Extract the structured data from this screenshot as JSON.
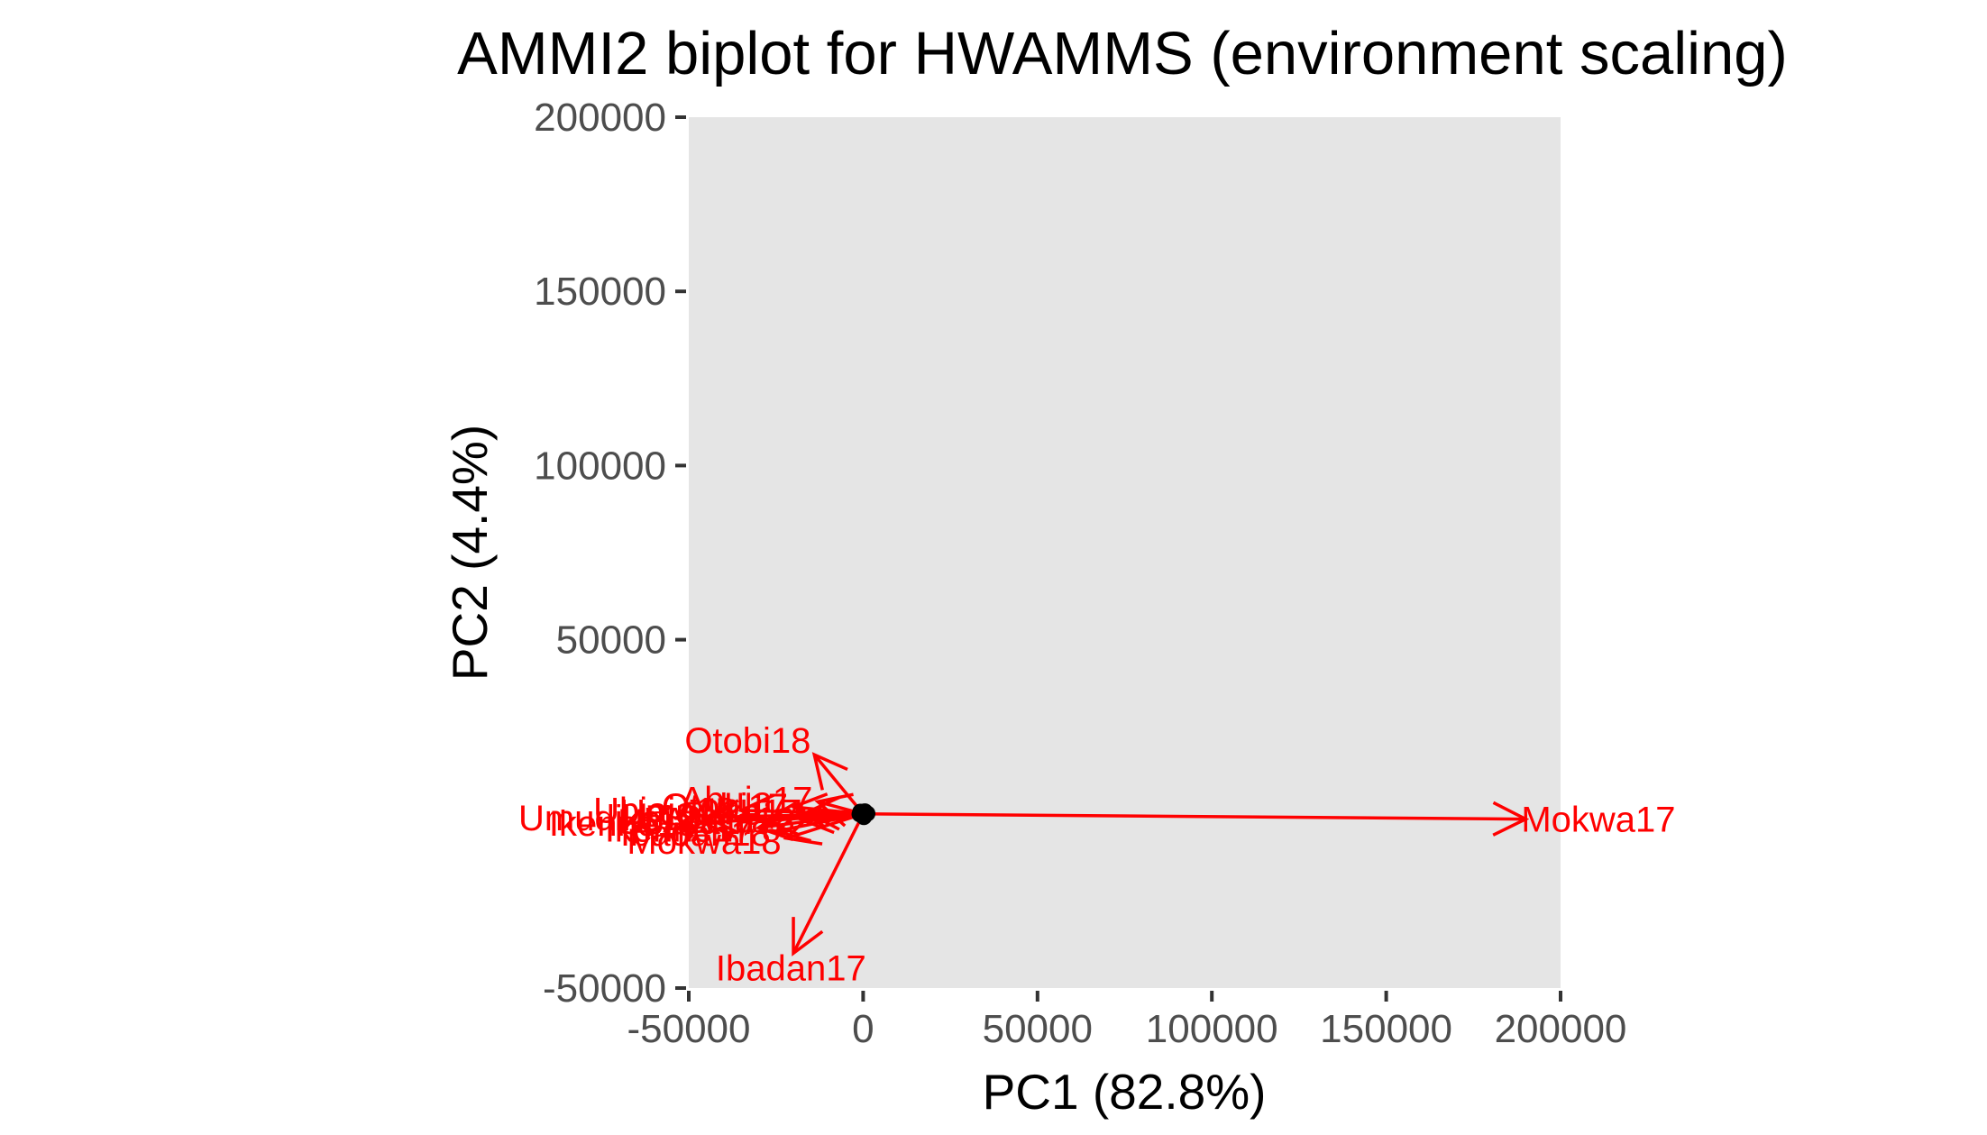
{
  "chart_data": {
    "type": "scatter",
    "title": "AMMI2 biplot for HWAMMS (environment scaling)",
    "xlabel": "PC1 (82.8%)",
    "ylabel": "PC2 (4.4%)",
    "xlim": [
      -50000,
      200000
    ],
    "ylim": [
      -50000,
      200000
    ],
    "xticks": [
      -50000,
      0,
      50000,
      100000,
      150000,
      200000
    ],
    "yticks": [
      -50000,
      50000,
      100000,
      150000,
      200000
    ],
    "grid": false,
    "panel_background": "#e5e5e5",
    "colors": {
      "environment": "#ff0000",
      "genotype": "#000000"
    },
    "environments": [
      {
        "name": "Mokwa17",
        "x": 190000,
        "y": -1500
      },
      {
        "name": "Ibadan17",
        "x": -20000,
        "y": -40000
      },
      {
        "name": "Otobi18",
        "x": -14000,
        "y": 17000
      },
      {
        "name": "Abuja17",
        "x": -13000,
        "y": 3500
      },
      {
        "name": "Umudike18",
        "x": -45000,
        "y": -1000
      },
      {
        "name": "Ikenne18",
        "x": -46000,
        "y": -2500
      },
      {
        "name": "Mokwa18",
        "x": -22000,
        "y": -7000
      },
      {
        "name": "Ubiaja18",
        "x": -35000,
        "y": 1000
      },
      {
        "name": "Ikenne17",
        "x": -30000,
        "y": -4000
      },
      {
        "name": "Otobi17",
        "x": -20000,
        "y": 2000
      },
      {
        "name": "Abuja18",
        "x": -18000,
        "y": -1500
      },
      {
        "name": "Ibadan18",
        "x": -25000,
        "y": -5000
      },
      {
        "name": "Ubiaja17",
        "x": -28000,
        "y": -2000
      },
      {
        "name": "Umudike17",
        "x": -16000,
        "y": 500
      }
    ],
    "genotypes": [
      {
        "x": 0,
        "y": 0
      },
      {
        "x": 800,
        "y": 300
      },
      {
        "x": -600,
        "y": -200
      },
      {
        "x": 300,
        "y": -500
      },
      {
        "x": -300,
        "y": 500
      },
      {
        "x": 1200,
        "y": 100
      },
      {
        "x": -1000,
        "y": -100
      },
      {
        "x": 500,
        "y": 700
      },
      {
        "x": -800,
        "y": 600
      },
      {
        "x": 200,
        "y": -900
      }
    ]
  }
}
